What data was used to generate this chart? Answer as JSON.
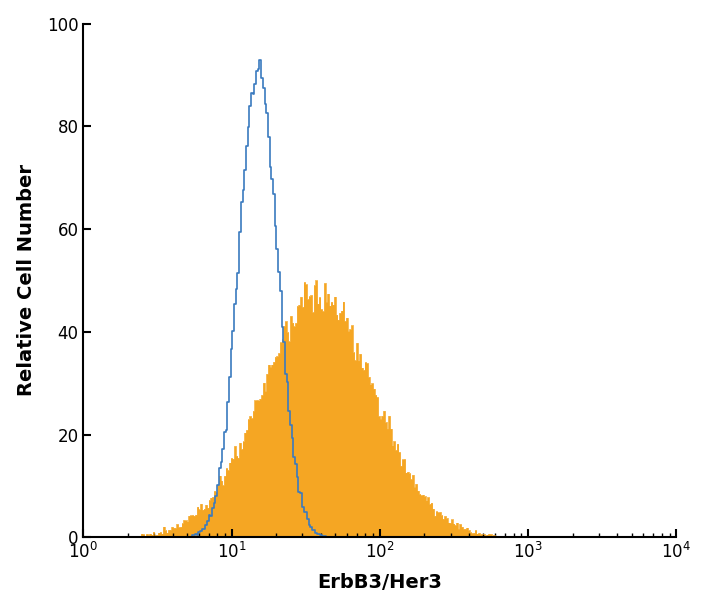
{
  "title": "",
  "xlabel": "ErbB3/Her3",
  "ylabel": "Relative Cell Number",
  "xlim": [
    1.0,
    10000.0
  ],
  "ylim": [
    0,
    100
  ],
  "yticks": [
    0,
    20,
    40,
    60,
    80,
    100
  ],
  "blue_color": "#3a7abf",
  "orange_color": "#f5a623",
  "blue_peak_log10": 1.18,
  "blue_sigma_log10": 0.13,
  "blue_peak_val": 93,
  "blue_n": 80000,
  "orange_peak_log10": 1.58,
  "orange_sigma_log10": 0.38,
  "orange_peak_val": 50,
  "orange_n": 60000,
  "n_bins": 350,
  "log_bin_min": 0.0,
  "log_bin_max": 4.0,
  "figsize": [
    7.08,
    6.09
  ],
  "dpi": 100,
  "xlabel_fontsize": 14,
  "ylabel_fontsize": 14,
  "tick_labelsize": 12,
  "spine_linewidth": 1.5,
  "blue_linewidth": 1.2,
  "orange_linewidth": 0.5
}
